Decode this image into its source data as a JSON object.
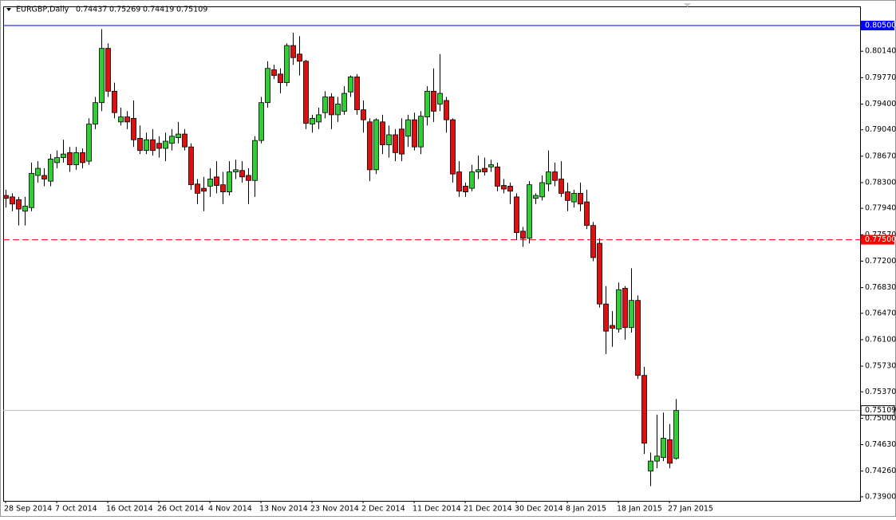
{
  "chart_data": {
    "type": "candlestick",
    "symbol": "EURGBP,Daily",
    "up_color": "#32cd32",
    "down_color": "#dd1111",
    "ylim": [
      0.73843,
      0.80768
    ],
    "yticks": [
      {
        "value": 0.805,
        "label": "0.80500"
      },
      {
        "value": 0.8014,
        "label": "0.80140"
      },
      {
        "value": 0.7977,
        "label": "0.79770"
      },
      {
        "value": 0.794,
        "label": "0.79400"
      },
      {
        "value": 0.7904,
        "label": "0.79040"
      },
      {
        "value": 0.7867,
        "label": "0.78670"
      },
      {
        "value": 0.783,
        "label": "0.78300"
      },
      {
        "value": 0.7794,
        "label": "0.77940"
      },
      {
        "value": 0.7757,
        "label": "0.77570"
      },
      {
        "value": 0.772,
        "label": "0.77200"
      },
      {
        "value": 0.7683,
        "label": "0.76830"
      },
      {
        "value": 0.7647,
        "label": "0.76470"
      },
      {
        "value": 0.761,
        "label": "0.76100"
      },
      {
        "value": 0.7573,
        "label": "0.75730"
      },
      {
        "value": 0.7537,
        "label": "0.75370"
      },
      {
        "value": 0.75,
        "label": "0.75000"
      },
      {
        "value": 0.7463,
        "label": "0.74630"
      },
      {
        "value": 0.7426,
        "label": "0.74260"
      },
      {
        "value": 0.739,
        "label": "0.73900"
      }
    ],
    "levels": [
      {
        "value": 0.805,
        "label": "0.80500",
        "color": "#0000ff",
        "dashed": false
      },
      {
        "value": 0.775,
        "label": "0.77500",
        "color": "#ff0000",
        "dashed": true
      }
    ],
    "price_line": 0.75109,
    "categories": [
      "28 Sep 2014",
      null,
      null,
      null,
      null,
      null,
      null,
      null,
      "7 Oct 2014",
      null,
      null,
      null,
      null,
      null,
      null,
      null,
      "16 Oct 2014",
      null,
      null,
      null,
      null,
      null,
      null,
      null,
      "26 Oct 2014",
      null,
      null,
      null,
      null,
      null,
      null,
      null,
      "4 Nov 2014",
      null,
      null,
      null,
      null,
      null,
      null,
      null,
      "13 Nov 2014",
      null,
      null,
      null,
      null,
      null,
      null,
      null,
      "23 Nov 2014",
      null,
      null,
      null,
      null,
      null,
      null,
      null,
      "2 Dec 2014",
      null,
      null,
      null,
      null,
      null,
      null,
      null,
      "11 Dec 2014",
      null,
      null,
      null,
      null,
      null,
      null,
      null,
      "21 Dec 2014",
      null,
      null,
      null,
      null,
      null,
      null,
      null,
      "30 Dec 2014",
      null,
      null,
      null,
      null,
      null,
      null,
      null,
      "8 Jan 2015",
      null,
      null,
      null,
      null,
      null,
      null,
      null,
      "18 Jan 2015",
      null,
      null,
      null,
      null,
      null,
      null,
      null,
      "27 Jan 2015",
      null
    ],
    "ohlc": [
      [
        0.7812,
        0.782,
        0.7795,
        0.7808
      ],
      [
        0.781,
        0.7815,
        0.779,
        0.78
      ],
      [
        0.7806,
        0.781,
        0.777,
        0.7793
      ],
      [
        0.779,
        0.781,
        0.777,
        0.7797
      ],
      [
        0.7795,
        0.7858,
        0.779,
        0.7843
      ],
      [
        0.784,
        0.786,
        0.783,
        0.785
      ],
      [
        0.784,
        0.785,
        0.7825,
        0.7835
      ],
      [
        0.7832,
        0.787,
        0.7825,
        0.7863
      ],
      [
        0.7858,
        0.7875,
        0.785,
        0.7865
      ],
      [
        0.7865,
        0.789,
        0.7858,
        0.787
      ],
      [
        0.7872,
        0.788,
        0.7845,
        0.7855
      ],
      [
        0.7855,
        0.788,
        0.7848,
        0.7872
      ],
      [
        0.7872,
        0.7878,
        0.785,
        0.7858
      ],
      [
        0.786,
        0.792,
        0.7855,
        0.7912
      ],
      [
        0.7912,
        0.795,
        0.7905,
        0.7942
      ],
      [
        0.7942,
        0.8045,
        0.793,
        0.8018
      ],
      [
        0.8018,
        0.8025,
        0.795,
        0.7958
      ],
      [
        0.7958,
        0.797,
        0.792,
        0.7928
      ],
      [
        0.7915,
        0.7935,
        0.791,
        0.7922
      ],
      [
        0.7922,
        0.793,
        0.7905,
        0.7915
      ],
      [
        0.792,
        0.7945,
        0.788,
        0.789
      ],
      [
        0.7892,
        0.791,
        0.787,
        0.7875
      ],
      [
        0.7875,
        0.79,
        0.787,
        0.789
      ],
      [
        0.789,
        0.7905,
        0.7868,
        0.7875
      ],
      [
        0.7885,
        0.7895,
        0.7865,
        0.7878
      ],
      [
        0.7878,
        0.79,
        0.786,
        0.7888
      ],
      [
        0.7885,
        0.7905,
        0.7875,
        0.7895
      ],
      [
        0.7893,
        0.7915,
        0.7885,
        0.7898
      ],
      [
        0.7898,
        0.7905,
        0.7875,
        0.788
      ],
      [
        0.788,
        0.7885,
        0.782,
        0.7827
      ],
      [
        0.7828,
        0.7835,
        0.78,
        0.7815
      ],
      [
        0.7822,
        0.7838,
        0.779,
        0.7818
      ],
      [
        0.7825,
        0.785,
        0.781,
        0.7835
      ],
      [
        0.7838,
        0.786,
        0.7815,
        0.7826
      ],
      [
        0.7827,
        0.7845,
        0.78,
        0.7817
      ],
      [
        0.7817,
        0.786,
        0.7812,
        0.7845
      ],
      [
        0.7845,
        0.7862,
        0.7835,
        0.7848
      ],
      [
        0.7847,
        0.786,
        0.783,
        0.7838
      ],
      [
        0.784,
        0.785,
        0.78,
        0.7833
      ],
      [
        0.7833,
        0.7895,
        0.781,
        0.7889
      ],
      [
        0.7889,
        0.795,
        0.7885,
        0.7942
      ],
      [
        0.7942,
        0.8,
        0.7935,
        0.799
      ],
      [
        0.7988,
        0.7995,
        0.7975,
        0.798
      ],
      [
        0.7982,
        0.799,
        0.7955,
        0.797
      ],
      [
        0.797,
        0.8025,
        0.7965,
        0.8022
      ],
      [
        0.8022,
        0.804,
        0.7995,
        0.8005
      ],
      [
        0.801,
        0.8035,
        0.798,
        0.8
      ],
      [
        0.8,
        0.8002,
        0.7905,
        0.7913
      ],
      [
        0.7912,
        0.7925,
        0.79,
        0.792
      ],
      [
        0.7915,
        0.7935,
        0.7905,
        0.7925
      ],
      [
        0.7928,
        0.7958,
        0.792,
        0.795
      ],
      [
        0.795,
        0.7955,
        0.7905,
        0.7925
      ],
      [
        0.7925,
        0.795,
        0.7915,
        0.794
      ],
      [
        0.793,
        0.7965,
        0.7925,
        0.7955
      ],
      [
        0.7957,
        0.798,
        0.795,
        0.7978
      ],
      [
        0.7978,
        0.7982,
        0.7925,
        0.7932
      ],
      [
        0.7932,
        0.7945,
        0.79,
        0.7918
      ],
      [
        0.7915,
        0.792,
        0.7832,
        0.7848
      ],
      [
        0.7848,
        0.792,
        0.7842,
        0.7918
      ],
      [
        0.7915,
        0.7925,
        0.787,
        0.7883
      ],
      [
        0.7883,
        0.791,
        0.7865,
        0.7897
      ],
      [
        0.7897,
        0.7905,
        0.786,
        0.7872
      ],
      [
        0.7905,
        0.792,
        0.786,
        0.787
      ],
      [
        0.7895,
        0.7925,
        0.788,
        0.7918
      ],
      [
        0.7918,
        0.7928,
        0.7875,
        0.788
      ],
      [
        0.788,
        0.793,
        0.787,
        0.7923
      ],
      [
        0.7922,
        0.7965,
        0.791,
        0.7958
      ],
      [
        0.7958,
        0.799,
        0.7915,
        0.793
      ],
      [
        0.794,
        0.801,
        0.793,
        0.7955
      ],
      [
        0.7945,
        0.795,
        0.79,
        0.7918
      ],
      [
        0.7918,
        0.792,
        0.783,
        0.7842
      ],
      [
        0.7845,
        0.786,
        0.781,
        0.7818
      ],
      [
        0.7825,
        0.783,
        0.781,
        0.7817
      ],
      [
        0.7822,
        0.7855,
        0.7818,
        0.7845
      ],
      [
        0.7845,
        0.7868,
        0.7835,
        0.7848
      ],
      [
        0.785,
        0.7865,
        0.784,
        0.7845
      ],
      [
        0.7852,
        0.7862,
        0.7845,
        0.7855
      ],
      [
        0.7852,
        0.7858,
        0.7818,
        0.7825
      ],
      [
        0.7826,
        0.7835,
        0.7815,
        0.7821
      ],
      [
        0.7825,
        0.783,
        0.78,
        0.7818
      ],
      [
        0.781,
        0.7815,
        0.775,
        0.776
      ],
      [
        0.7762,
        0.7768,
        0.774,
        0.7752
      ],
      [
        0.7752,
        0.7832,
        0.7745,
        0.7827
      ],
      [
        0.7808,
        0.7815,
        0.78,
        0.7812
      ],
      [
        0.781,
        0.784,
        0.7805,
        0.783
      ],
      [
        0.7828,
        0.7875,
        0.7818,
        0.7845
      ],
      [
        0.7845,
        0.7858,
        0.7825,
        0.7833
      ],
      [
        0.7835,
        0.786,
        0.781,
        0.7815
      ],
      [
        0.7817,
        0.783,
        0.779,
        0.7805
      ],
      [
        0.7803,
        0.782,
        0.7795,
        0.7815
      ],
      [
        0.7815,
        0.783,
        0.779,
        0.78
      ],
      [
        0.7803,
        0.782,
        0.7765,
        0.777
      ],
      [
        0.777,
        0.7775,
        0.772,
        0.7725
      ],
      [
        0.7745,
        0.7752,
        0.7655,
        0.766
      ],
      [
        0.766,
        0.7685,
        0.759,
        0.7622
      ],
      [
        0.763,
        0.765,
        0.76,
        0.7626
      ],
      [
        0.7625,
        0.769,
        0.762,
        0.768
      ],
      [
        0.7682,
        0.7685,
        0.761,
        0.7627
      ],
      [
        0.7627,
        0.771,
        0.762,
        0.7665
      ],
      [
        0.7665,
        0.7672,
        0.7555,
        0.756
      ],
      [
        0.756,
        0.7572,
        0.745,
        0.7465
      ],
      [
        0.7426,
        0.7452,
        0.7405,
        0.744
      ],
      [
        0.744,
        0.7505,
        0.743,
        0.7447
      ],
      [
        0.7445,
        0.7508,
        0.744,
        0.7472
      ],
      [
        0.747,
        0.7492,
        0.743,
        0.7437
      ],
      [
        0.74437,
        0.75269,
        0.74419,
        0.75109
      ]
    ]
  }
}
